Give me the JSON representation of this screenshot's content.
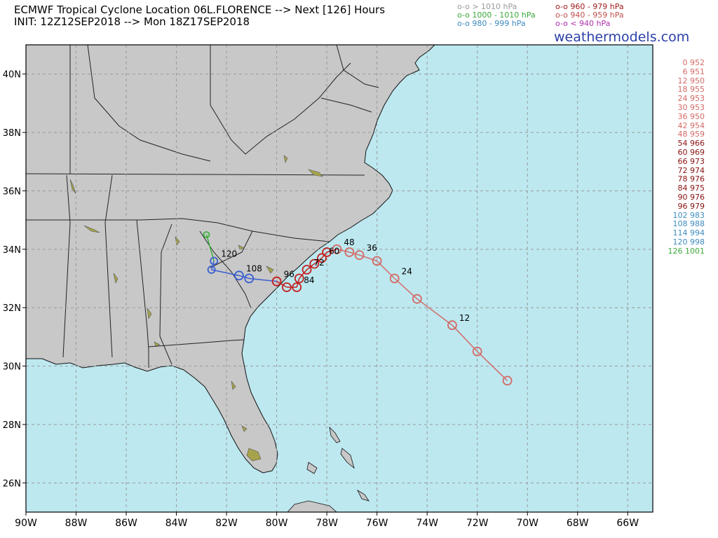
{
  "header": {
    "title_line1": "ECMWF Tropical Cyclone Location 06L.FLORENCE --> Next [126] Hours",
    "title_line2": "INIT: 12Z12SEP2018 --> Mon 18Z17SEP2018",
    "brand": "weathermodels.com"
  },
  "legend": [
    {
      "label": "o-o > 1010 hPa",
      "color": "#9a9a9a"
    },
    {
      "label": "o-o 1000 - 1010 hPa",
      "color": "#3aa83a"
    },
    {
      "label": "o-o 980 - 999 hPa",
      "color": "#3d8bbf"
    },
    {
      "label": "o-o 960 - 979 hPa",
      "color": "#9e1a1a"
    },
    {
      "label": "o-o 940 - 959 hPa",
      "color": "#c0504d"
    },
    {
      "label": "o-o < 940 hPa",
      "color": "#b030b0"
    }
  ],
  "colors": {
    "ocean": "#bde8f0",
    "land": "#c8c8c8",
    "grid": "#9a9a9a",
    "border": "#222222",
    "track_weak": "#d46a66",
    "track_strong": "#c42020",
    "track_blue": "#3a5fd0",
    "track_green": "#3ab03a"
  },
  "axes": {
    "x_ticks": [
      "90W",
      "88W",
      "86W",
      "84W",
      "82W",
      "80W",
      "78W",
      "76W",
      "74W",
      "72W",
      "70W",
      "68W",
      "66W"
    ],
    "y_ticks": [
      "40N",
      "38N",
      "36N",
      "34N",
      "32N",
      "30N",
      "28N",
      "26N"
    ]
  },
  "track": [
    {
      "hour": 0,
      "lon": -70.8,
      "lat": 29.5,
      "pres": 952,
      "label": ""
    },
    {
      "hour": 6,
      "lon": -72.0,
      "lat": 30.5,
      "pres": 951,
      "label": ""
    },
    {
      "hour": 12,
      "lon": -73.0,
      "lat": 31.4,
      "pres": 950,
      "label": "12"
    },
    {
      "hour": 18,
      "lon": -74.4,
      "lat": 32.3,
      "pres": 955,
      "label": ""
    },
    {
      "hour": 24,
      "lon": -75.3,
      "lat": 33.0,
      "pres": 953,
      "label": "24"
    },
    {
      "hour": 30,
      "lon": -76.0,
      "lat": 33.6,
      "pres": 953,
      "label": ""
    },
    {
      "hour": 36,
      "lon": -76.7,
      "lat": 33.8,
      "pres": 950,
      "label": "36"
    },
    {
      "hour": 42,
      "lon": -77.1,
      "lat": 33.9,
      "pres": 954,
      "label": ""
    },
    {
      "hour": 48,
      "lon": -77.6,
      "lat": 34.0,
      "pres": 959,
      "label": "48"
    },
    {
      "hour": 54,
      "lon": -78.0,
      "lat": 33.9,
      "pres": 966,
      "label": ""
    },
    {
      "hour": 60,
      "lon": -78.2,
      "lat": 33.7,
      "pres": 969,
      "label": "60"
    },
    {
      "hour": 66,
      "lon": -78.5,
      "lat": 33.5,
      "pres": 973,
      "label": ""
    },
    {
      "hour": 72,
      "lon": -78.8,
      "lat": 33.3,
      "pres": 974,
      "label": "72"
    },
    {
      "hour": 78,
      "lon": -79.1,
      "lat": 33.0,
      "pres": 976,
      "label": ""
    },
    {
      "hour": 84,
      "lon": -79.2,
      "lat": 32.7,
      "pres": 975,
      "label": "84"
    },
    {
      "hour": 90,
      "lon": -79.6,
      "lat": 32.7,
      "pres": 976,
      "label": ""
    },
    {
      "hour": 96,
      "lon": -80.0,
      "lat": 32.9,
      "pres": 979,
      "label": "96"
    },
    {
      "hour": 102,
      "lon": -81.1,
      "lat": 33.0,
      "pres": 983,
      "label": ""
    },
    {
      "hour": 108,
      "lon": -81.5,
      "lat": 33.1,
      "pres": 988,
      "label": "108"
    },
    {
      "hour": 114,
      "lon": -82.6,
      "lat": 33.3,
      "pres": 994,
      "label": ""
    },
    {
      "hour": 120,
      "lon": -82.5,
      "lat": 33.6,
      "pres": 998,
      "label": "120"
    },
    {
      "hour": 126,
      "lon": -82.8,
      "lat": 34.5,
      "pres": 1001,
      "label": ""
    }
  ],
  "pressure_list": [
    {
      "text": "0 952",
      "color": "#d46a66"
    },
    {
      "text": "6 951",
      "color": "#d46a66"
    },
    {
      "text": "12 950",
      "color": "#d46a66"
    },
    {
      "text": "18 955",
      "color": "#d46a66"
    },
    {
      "text": "24 953",
      "color": "#d46a66"
    },
    {
      "text": "30 953",
      "color": "#d46a66"
    },
    {
      "text": "36 950",
      "color": "#d46a66"
    },
    {
      "text": "42 954",
      "color": "#d46a66"
    },
    {
      "text": "48 959",
      "color": "#d46a66"
    },
    {
      "text": "54 966",
      "color": "#8a1010"
    },
    {
      "text": "60 969",
      "color": "#8a1010"
    },
    {
      "text": "66 973",
      "color": "#8a1010"
    },
    {
      "text": "72 974",
      "color": "#8a1010"
    },
    {
      "text": "78 976",
      "color": "#8a1010"
    },
    {
      "text": "84 975",
      "color": "#8a1010"
    },
    {
      "text": "90 976",
      "color": "#8a1010"
    },
    {
      "text": "96 979",
      "color": "#8a1010"
    },
    {
      "text": "102 983",
      "color": "#3d8bbf"
    },
    {
      "text": "108 988",
      "color": "#3d8bbf"
    },
    {
      "text": "114 994",
      "color": "#3d8bbf"
    },
    {
      "text": "120 998",
      "color": "#3d8bbf"
    },
    {
      "text": "126 1001",
      "color": "#3aa83a"
    }
  ]
}
